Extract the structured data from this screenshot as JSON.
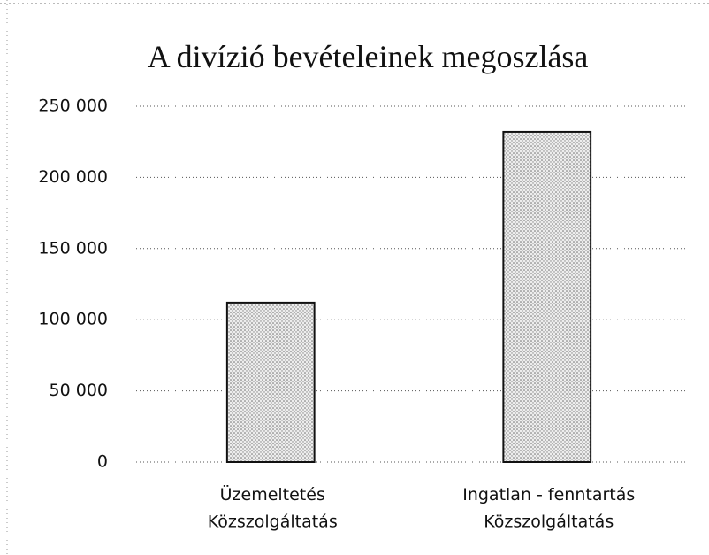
{
  "chart_data": {
    "type": "bar",
    "title": "A divízió bevételeinek megoszlása",
    "categories": [
      "Üzemeltetés\nKözszolgáltatás",
      "Ingatlan - fenntartás\nKözszolgáltatás"
    ],
    "values": [
      112000,
      232000
    ],
    "color": "#b8b8b8",
    "ylim": [
      0,
      250000
    ],
    "yticks": [
      0,
      {
        "value": 50000,
        "label": "50 000"
      },
      {
        "value": 100000,
        "label": "100 000"
      },
      {
        "value": 150000,
        "label": "150 000"
      },
      {
        "value": 200000,
        "label": "200 000"
      },
      {
        "value": 250000,
        "label": "250 000"
      }
    ],
    "grid": true
  }
}
